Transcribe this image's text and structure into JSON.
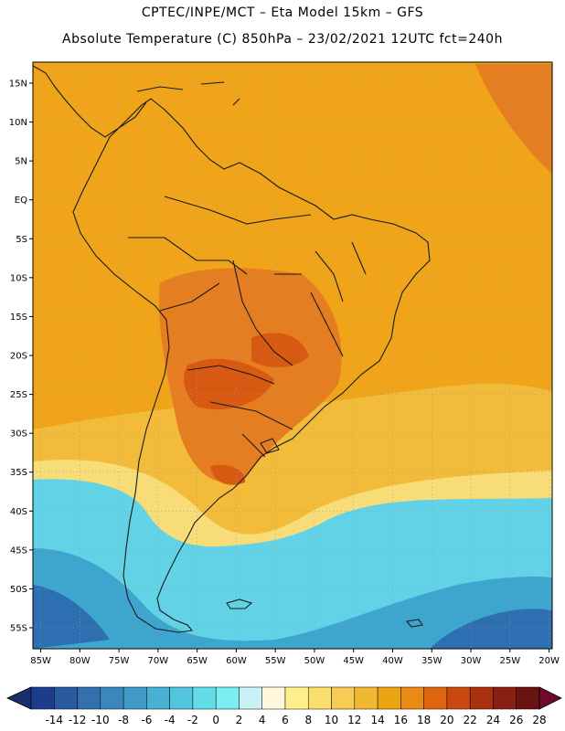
{
  "header": {
    "line1": "CPTEC/INPE/MCT –  Eta Model 15km – GFS",
    "line2": "Absolute Temperature (C) 850hPa – 23/02/2021 12UTC fct=240h"
  },
  "map": {
    "lat_labels": [
      "15N",
      "10N",
      "5N",
      "EQ",
      "5S",
      "10S",
      "15S",
      "20S",
      "25S",
      "30S",
      "35S",
      "40S",
      "45S",
      "50S",
      "55S"
    ],
    "lon_labels": [
      "85W",
      "80W",
      "75W",
      "70W",
      "65W",
      "60W",
      "55W",
      "50W",
      "45W",
      "40W",
      "35W",
      "30W",
      "25W",
      "20W"
    ]
  },
  "colorbar": {
    "labels": [
      "-14",
      "-12",
      "-10",
      "-8",
      "-6",
      "-4",
      "-2",
      "0",
      "2",
      "4",
      "6",
      "8",
      "10",
      "12",
      "14",
      "16",
      "18",
      "20",
      "22",
      "24",
      "26",
      "28"
    ],
    "colors": [
      "#1e3c8c",
      "#2a5aa0",
      "#3270b0",
      "#3a86bd",
      "#3f9ac8",
      "#47b0d4",
      "#52c6de",
      "#62dde8",
      "#7aeef2",
      "#c8f2f8",
      "#fff6dc",
      "#fff08c",
      "#fbe070",
      "#f6cc52",
      "#f0b830",
      "#eca512",
      "#ea8a14",
      "#de6410",
      "#c84810",
      "#aa3010",
      "#882014",
      "#6a1412"
    ],
    "under_color": "#1a2e6e",
    "over_color": "#6e0a2a"
  },
  "field_colors": {
    "band_warm": "#f0a41a",
    "band_hot": "#e57e20",
    "band_hottest": "#d85a12",
    "band_mild": "#f2bc3a",
    "band_cool": "#f7dc78",
    "band_cold": "#62d3e6",
    "band_colder": "#3ea6ce",
    "band_coldest": "#2d6fb0",
    "coastline": "#1a1a1a",
    "grid": "#9a9a9a"
  }
}
